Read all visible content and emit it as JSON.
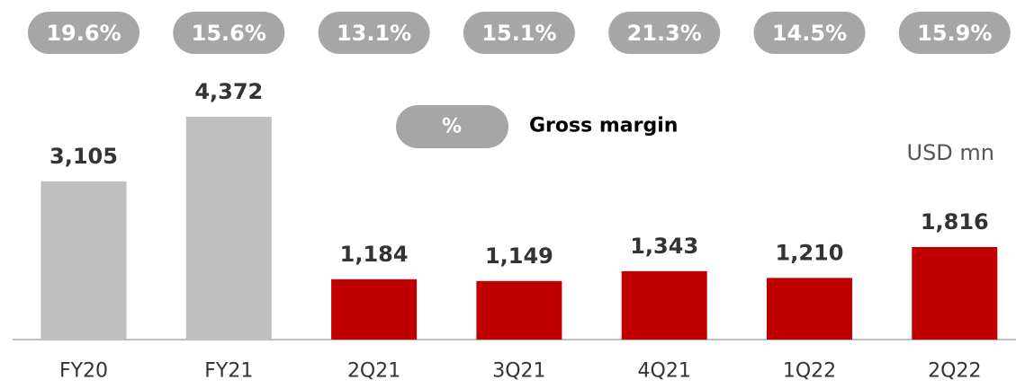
{
  "chart_data": {
    "type": "bar",
    "categories": [
      "FY20",
      "FY21",
      "2Q21",
      "3Q21",
      "4Q21",
      "1Q22",
      "2Q22"
    ],
    "values": [
      3105,
      4372,
      1184,
      1149,
      1343,
      1210,
      1816
    ],
    "value_labels": [
      "3,105",
      "4,372",
      "1,184",
      "1,149",
      "1,343",
      "1,210",
      "1,816"
    ],
    "colors": [
      "#bfbfbf",
      "#bfbfbf",
      "#c00000",
      "#c00000",
      "#c00000",
      "#c00000",
      "#c00000"
    ],
    "unit": "USD mn",
    "margin": {
      "name": "Gross margin",
      "symbol": "%",
      "color": "#a6a6a6",
      "values": [
        19.6,
        15.6,
        13.1,
        15.1,
        21.3,
        14.5,
        15.9
      ],
      "value_labels": [
        "19.6%",
        "15.6%",
        "13.1%",
        "15.1%",
        "21.3%",
        "14.5%",
        "15.9%"
      ]
    }
  }
}
